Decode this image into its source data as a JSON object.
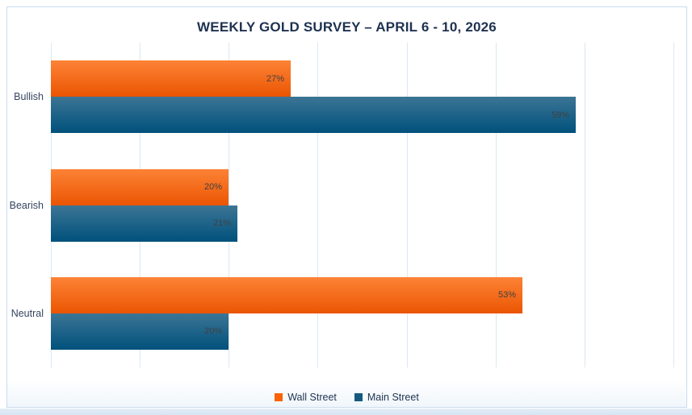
{
  "title": "WEEKLY GOLD SURVEY – APRIL 6 - 10, 2026",
  "chart_data": {
    "type": "bar",
    "orientation": "horizontal",
    "title": "WEEKLY GOLD SURVEY – APRIL 6 - 10, 2026",
    "categories": [
      "Bullish",
      "Bearish",
      "Neutral"
    ],
    "series": [
      {
        "name": "Wall Street",
        "values": [
          27,
          20,
          53
        ],
        "labels": [
          "27%",
          "20%",
          "53%"
        ],
        "color_top": "#fd8336",
        "color_bottom": "#ea5502",
        "legend_color": "#f96302"
      },
      {
        "name": "Main Street",
        "values": [
          59,
          21,
          20
        ],
        "labels": [
          "59%",
          "21%",
          "20%"
        ],
        "color_top": "#3c7595",
        "color_bottom": "#00517c",
        "legend_color": "#15597f"
      }
    ],
    "xlabel": "",
    "ylabel": "",
    "xlim": [
      0,
      70
    ],
    "xticks": [
      "0%",
      "10%",
      "20%",
      "30%",
      "40%",
      "50%",
      "60%",
      "70%"
    ],
    "grid": true,
    "legend_position": "bottom",
    "value_suffix": "%"
  },
  "colors": {
    "gridline": "#dce7f3",
    "card_border": "#c9dcee",
    "title_text": "#1e3250",
    "axis_text": "#3b4c66",
    "category_text": "#34455e",
    "value_label_text": "#404040",
    "page_strip": "#d7e5f3"
  }
}
